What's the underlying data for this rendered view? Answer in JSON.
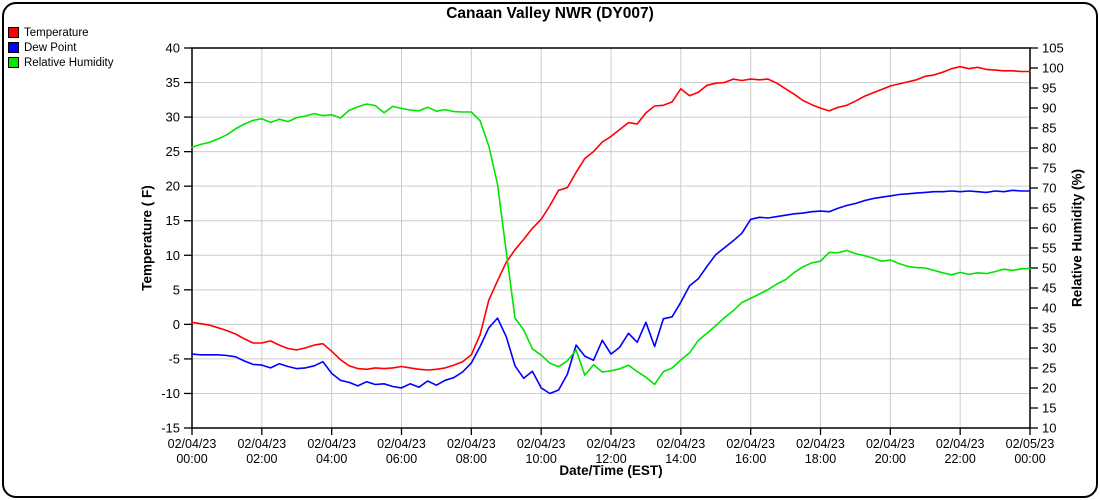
{
  "title": "Canaan Valley NWR (DY007)",
  "legend": [
    {
      "label": "Temperature",
      "color": "#ff0000"
    },
    {
      "label": "Dew Point",
      "color": "#0000ff"
    },
    {
      "label": "Relative Humidity",
      "color": "#00e400"
    }
  ],
  "chart_data": {
    "type": "line",
    "title": "Canaan Valley NWR (DY007)",
    "xlabel": "Date/Time (EST)",
    "grid": "horizontal gridlines at left-axis ticks, vertical gridlines at x ticks",
    "gridline_color": "#cccccc",
    "axis_color": "#000000",
    "left_axis": {
      "label": "Temperature ( F)",
      "min": -15,
      "max": 40,
      "tick_step": 5
    },
    "right_axis": {
      "label": "Relative Humidity (%)",
      "min": 10,
      "max": 105,
      "tick_step": 5
    },
    "x_hours_start": 0,
    "x_hours_step": 0.25,
    "n_points": 97,
    "x_ticks": [
      {
        "date": "02/04/23",
        "time": "00:00"
      },
      {
        "date": "02/04/23",
        "time": "02:00"
      },
      {
        "date": "02/04/23",
        "time": "04:00"
      },
      {
        "date": "02/04/23",
        "time": "06:00"
      },
      {
        "date": "02/04/23",
        "time": "08:00"
      },
      {
        "date": "02/04/23",
        "time": "10:00"
      },
      {
        "date": "02/04/23",
        "time": "12:00"
      },
      {
        "date": "02/04/23",
        "time": "14:00"
      },
      {
        "date": "02/04/23",
        "time": "16:00"
      },
      {
        "date": "02/04/23",
        "time": "18:00"
      },
      {
        "date": "02/04/23",
        "time": "20:00"
      },
      {
        "date": "02/04/23",
        "time": "22:00"
      },
      {
        "date": "02/05/23",
        "time": "00:00"
      }
    ],
    "series": [
      {
        "name": "Temperature",
        "axis": "left",
        "color": "#ff0000",
        "values": [
          0.3,
          0.1,
          -0.1,
          -0.5,
          -0.9,
          -1.4,
          -2.1,
          -2.7,
          -2.7,
          -2.4,
          -3.0,
          -3.5,
          -3.7,
          -3.4,
          -3.0,
          -2.8,
          -3.9,
          -5.1,
          -6.0,
          -6.4,
          -6.5,
          -6.3,
          -6.4,
          -6.3,
          -6.1,
          -6.3,
          -6.5,
          -6.6,
          -6.5,
          -6.3,
          -5.9,
          -5.4,
          -4.4,
          -1.5,
          3.5,
          6.3,
          9.0,
          10.8,
          12.3,
          13.9,
          15.2,
          17.2,
          19.4,
          19.8,
          22.0,
          24.0,
          25.0,
          26.4,
          27.2,
          28.2,
          29.2,
          29.0,
          30.6,
          31.6,
          31.7,
          32.2,
          34.1,
          33.1,
          33.6,
          34.6,
          34.9,
          35.0,
          35.5,
          35.3,
          35.5,
          35.4,
          35.5,
          34.9,
          34.1,
          33.3,
          32.4,
          31.8,
          31.3,
          30.9,
          31.4,
          31.7,
          32.3,
          33.0,
          33.5,
          34.0,
          34.5,
          34.8,
          35.1,
          35.4,
          35.9,
          36.1,
          36.5,
          37.0,
          37.3,
          37.0,
          37.2,
          36.9,
          36.8,
          36.7,
          36.7,
          36.6,
          36.6
        ]
      },
      {
        "name": "Dew Point",
        "axis": "left",
        "color": "#0000ff",
        "values": [
          -4.3,
          -4.4,
          -4.4,
          -4.4,
          -4.5,
          -4.7,
          -5.3,
          -5.8,
          -5.9,
          -6.3,
          -5.7,
          -6.1,
          -6.4,
          -6.3,
          -6.0,
          -5.4,
          -7.1,
          -8.1,
          -8.4,
          -8.9,
          -8.3,
          -8.7,
          -8.6,
          -9.0,
          -9.2,
          -8.6,
          -9.1,
          -8.2,
          -8.8,
          -8.1,
          -7.7,
          -6.9,
          -5.6,
          -3.2,
          -0.5,
          0.9,
          -1.8,
          -6.0,
          -7.8,
          -6.8,
          -9.2,
          -10.0,
          -9.5,
          -7.2,
          -3.0,
          -4.6,
          -5.2,
          -2.3,
          -4.3,
          -3.3,
          -1.3,
          -2.6,
          0.3,
          -3.2,
          0.8,
          1.1,
          3.2,
          5.6,
          6.6,
          8.4,
          10.1,
          11.1,
          12.1,
          13.2,
          15.2,
          15.5,
          15.4,
          15.6,
          15.8,
          16.0,
          16.1,
          16.3,
          16.4,
          16.3,
          16.8,
          17.2,
          17.5,
          17.9,
          18.2,
          18.4,
          18.6,
          18.8,
          18.9,
          19.0,
          19.1,
          19.2,
          19.2,
          19.3,
          19.2,
          19.3,
          19.2,
          19.1,
          19.3,
          19.2,
          19.4,
          19.3,
          19.3
        ]
      },
      {
        "name": "Relative Humidity",
        "axis": "right",
        "color": "#00e400",
        "values": [
          80.2,
          80.9,
          81.4,
          82.3,
          83.3,
          84.8,
          86.0,
          86.9,
          87.3,
          86.4,
          87.2,
          86.6,
          87.6,
          88.0,
          88.6,
          88.1,
          88.3,
          87.5,
          89.4,
          90.3,
          91.0,
          90.6,
          88.8,
          90.4,
          89.9,
          89.5,
          89.3,
          90.2,
          89.2,
          89.6,
          89.1,
          89.0,
          89.0,
          86.8,
          80.5,
          71.0,
          54.0,
          37.5,
          34.5,
          29.8,
          28.2,
          26.2,
          25.3,
          26.8,
          29.5,
          23.2,
          25.8,
          24.0,
          24.3,
          24.8,
          25.7,
          24.1,
          22.7,
          20.9,
          24.1,
          25.0,
          27.0,
          28.8,
          31.9,
          33.7,
          35.6,
          37.6,
          39.3,
          41.4,
          42.4,
          43.5,
          44.6,
          46.0,
          47.1,
          48.9,
          50.3,
          51.3,
          51.7,
          53.9,
          53.8,
          54.4,
          53.6,
          53.1,
          52.5,
          51.7,
          52.0,
          51.1,
          50.4,
          50.1,
          50.0,
          49.4,
          48.8,
          48.3,
          48.9,
          48.4,
          48.8,
          48.6,
          49.1,
          49.7,
          49.4,
          49.8,
          49.9
        ]
      }
    ]
  }
}
